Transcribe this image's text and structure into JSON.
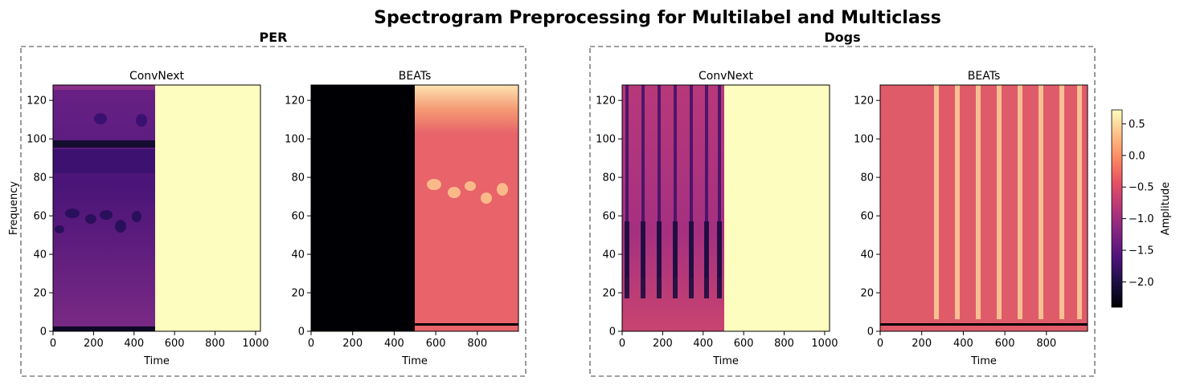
{
  "title": "Spectrogram Preprocessing for Multilabel and Multiclass",
  "groups": [
    "PER",
    "Dogs"
  ],
  "chart_data": [
    {
      "type": "heatmap",
      "group": "PER",
      "title": "ConvNext",
      "xlabel": "Time",
      "ylabel": "Frequency",
      "xlim": [
        0,
        1024
      ],
      "ylim": [
        0,
        128
      ],
      "xticks": [
        0,
        200,
        400,
        600,
        800,
        1000
      ],
      "yticks": [
        0,
        20,
        40,
        60,
        80,
        100,
        120
      ],
      "content_x_end": 500,
      "fill_value": 0.7
    },
    {
      "type": "heatmap",
      "group": "PER",
      "title": "BEATs",
      "xlabel": "Time",
      "ylabel": "",
      "xlim": [
        0,
        998
      ],
      "ylim": [
        0,
        128
      ],
      "xticks": [
        0,
        200,
        400,
        600,
        800
      ],
      "yticks": [
        0,
        20,
        40,
        60,
        80,
        100,
        120
      ],
      "pad_x_end": 500,
      "pad_value": -2.4
    },
    {
      "type": "heatmap",
      "group": "Dogs",
      "title": "ConvNext",
      "xlabel": "Time",
      "ylabel": "",
      "xlim": [
        0,
        1024
      ],
      "ylim": [
        0,
        128
      ],
      "xticks": [
        0,
        200,
        400,
        600,
        800,
        1000
      ],
      "yticks": [
        0,
        20,
        40,
        60,
        80,
        100,
        120
      ],
      "content_x_end": 500,
      "fill_value": 0.7
    },
    {
      "type": "heatmap",
      "group": "Dogs",
      "title": "BEATs",
      "xlabel": "Time",
      "ylabel": "",
      "xlim": [
        0,
        998
      ],
      "ylim": [
        0,
        128
      ],
      "xticks": [
        0,
        200,
        400,
        600,
        800
      ],
      "yticks": [
        0,
        20,
        40,
        60,
        80,
        100,
        120
      ]
    }
  ],
  "colorbar": {
    "label": "Amplitude",
    "colormap": "magma",
    "range": [
      -2.4,
      0.72
    ],
    "ticks": [
      "0.5",
      "0.0",
      "−0.5",
      "−1.0",
      "−1.5",
      "−2.0"
    ],
    "tick_values": [
      0.5,
      0.0,
      -0.5,
      -1.0,
      -1.5,
      -2.0
    ]
  }
}
